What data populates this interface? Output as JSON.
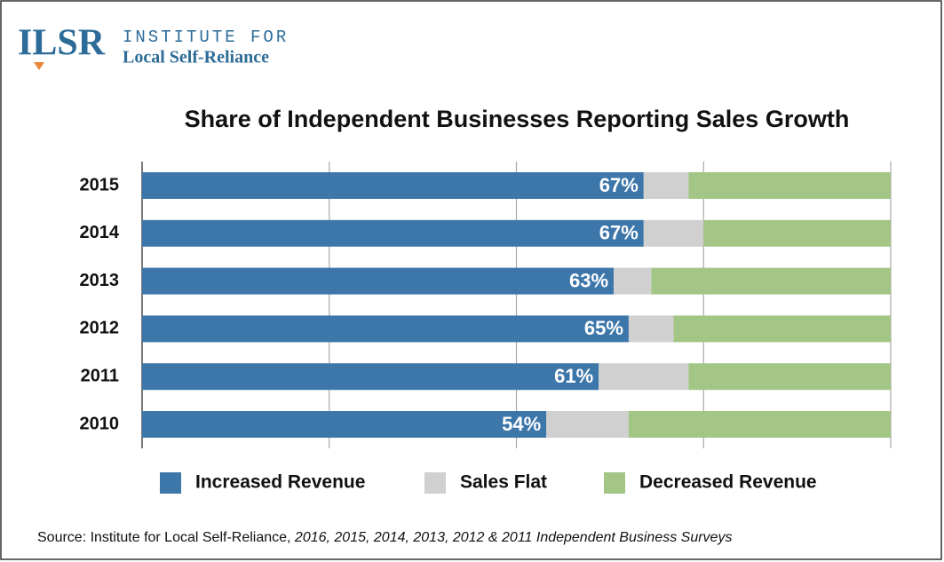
{
  "logo": {
    "mark": "ILSR",
    "line1": "INSTITUTE FOR",
    "line2": "Local Self-Reliance"
  },
  "chart_data": {
    "type": "stacked-bar-horizontal",
    "title": "Share of Independent Businesses Reporting Sales Growth",
    "categories": [
      "2015",
      "2014",
      "2013",
      "2012",
      "2011",
      "2010"
    ],
    "series": [
      {
        "name": "Increased Revenue",
        "color": "#3d77aa",
        "values": [
          67,
          67,
          63,
          65,
          61,
          54
        ],
        "value_labels": [
          "67%",
          "67%",
          "63%",
          "65%",
          "61%",
          "54%"
        ]
      },
      {
        "name": "Sales Flat",
        "color": "#d0d0d0",
        "values": [
          6,
          8,
          5,
          6,
          12,
          11
        ]
      },
      {
        "name": "Decreased Revenue",
        "color": "#a3c586",
        "values": [
          27,
          25,
          32,
          29,
          27,
          35
        ]
      }
    ],
    "xlim": [
      0,
      100
    ],
    "xticks": [
      0,
      25,
      50,
      75,
      100
    ],
    "grid": true,
    "source_prefix": "Source: Institute for Local Self-Reliance, ",
    "source_italic": "2016, 2015, 2014, 2013, 2012 & 2011 Independent Business Surveys"
  }
}
